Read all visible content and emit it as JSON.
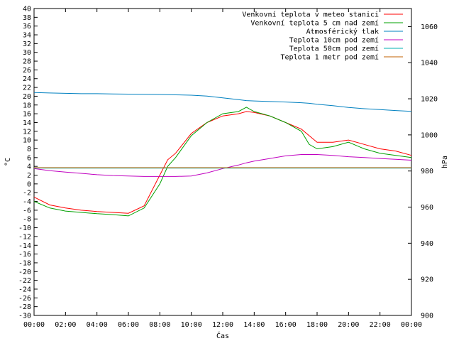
{
  "chart_data": {
    "type": "line",
    "xlabel": "Čas",
    "ylabel": "°C",
    "y2label": "hPa",
    "xlim": [
      0,
      24
    ],
    "ylim": [
      -30,
      40
    ],
    "y2lim": [
      900,
      1070
    ],
    "x_ticks": [
      "00:00",
      "02:00",
      "04:00",
      "06:00",
      "08:00",
      "10:00",
      "12:00",
      "14:00",
      "16:00",
      "18:00",
      "20:00",
      "22:00",
      "00:00"
    ],
    "y_ticks": [
      "-30",
      "-28",
      "-26",
      "-24",
      "-22",
      "-20",
      "-18",
      "-16",
      "-14",
      "-12",
      "-10",
      "-8",
      "-6",
      "-4",
      "-2",
      "0",
      "2",
      "4",
      "6",
      "8",
      "10",
      "12",
      "14",
      "16",
      "18",
      "20",
      "22",
      "24",
      "26",
      "28",
      "30",
      "32",
      "34",
      "36",
      "38",
      "40"
    ],
    "y2_ticks": [
      "900",
      "920",
      "940",
      "960",
      "980",
      "1000",
      "1020",
      "1040",
      "1060"
    ],
    "grid": false,
    "legend_position": "top-right",
    "x": [
      0,
      1,
      2,
      3,
      4,
      5,
      6,
      7,
      8,
      8.5,
      9,
      10,
      11,
      12,
      13,
      13.5,
      14,
      15,
      16,
      17,
      17.5,
      18,
      19,
      20,
      21,
      22,
      23,
      24
    ],
    "series": [
      {
        "name": "Venkovní teplota v meteo stanici",
        "axis": "left",
        "color": "#ff0000",
        "values": [
          -3,
          -4.8,
          -5.5,
          -6,
          -6.3,
          -6.5,
          -6.7,
          -5,
          2,
          5.5,
          7,
          11.5,
          14,
          15.5,
          16,
          16.5,
          16.3,
          15.5,
          14,
          12.5,
          11,
          9.5,
          9.5,
          10,
          9,
          8,
          7.5,
          6.5
        ]
      },
      {
        "name": "Venkovní teplota 5 cm nad zemí",
        "axis": "left",
        "color": "#00a000",
        "values": [
          -4,
          -5.5,
          -6.2,
          -6.5,
          -6.8,
          -7,
          -7.3,
          -5.5,
          0,
          4,
          6,
          11,
          14,
          16,
          16.5,
          17.5,
          16.5,
          15.5,
          14,
          12,
          9,
          8,
          8.5,
          9.5,
          8,
          7,
          6.5,
          6
        ]
      },
      {
        "name": "Atmosférický tlak",
        "axis": "right",
        "color": "#0080c0",
        "values": [
          1023.5,
          1023.2,
          1023,
          1022.8,
          1022.8,
          1022.7,
          1022.6,
          1022.5,
          1022.4,
          1022.3,
          1022.2,
          1022,
          1021.5,
          1020.5,
          1019.5,
          1019,
          1018.8,
          1018.5,
          1018.2,
          1017.8,
          1017.5,
          1017,
          1016.2,
          1015.2,
          1014.5,
          1014,
          1013.5,
          1013
        ]
      },
      {
        "name": "Teplota 10cm pod zemí",
        "axis": "left",
        "color": "#c000c0",
        "values": [
          3.5,
          3,
          2.7,
          2.4,
          2.1,
          1.9,
          1.8,
          1.7,
          1.7,
          1.7,
          1.7,
          1.8,
          2.5,
          3.5,
          4.3,
          4.8,
          5.2,
          5.8,
          6.4,
          6.7,
          6.7,
          6.7,
          6.5,
          6.2,
          6,
          5.8,
          5.6,
          5.4
        ]
      },
      {
        "name": "Teplota 50cm pod zemí",
        "axis": "left",
        "color": "#00b0b0",
        "values": [
          3.6,
          3.6,
          3.6,
          3.6,
          3.6,
          3.6,
          3.6,
          3.6,
          3.6,
          3.6,
          3.6,
          3.6,
          3.6,
          3.6,
          3.6,
          3.6,
          3.6,
          3.6,
          3.6,
          3.6,
          3.6,
          3.6,
          3.6,
          3.6,
          3.6,
          3.6,
          3.6,
          3.6
        ]
      },
      {
        "name": "Teplota 1 metr pod zemí",
        "axis": "left",
        "color": "#c06000",
        "values": [
          3.7,
          3.7,
          3.7,
          3.7,
          3.7,
          3.7,
          3.7,
          3.7,
          3.7,
          3.7,
          3.7,
          3.7,
          3.7,
          3.7,
          3.7,
          3.7,
          3.7,
          3.7,
          3.7,
          3.7,
          3.7,
          3.7,
          3.7,
          3.7,
          3.7,
          3.7,
          3.7,
          3.7
        ]
      }
    ]
  }
}
